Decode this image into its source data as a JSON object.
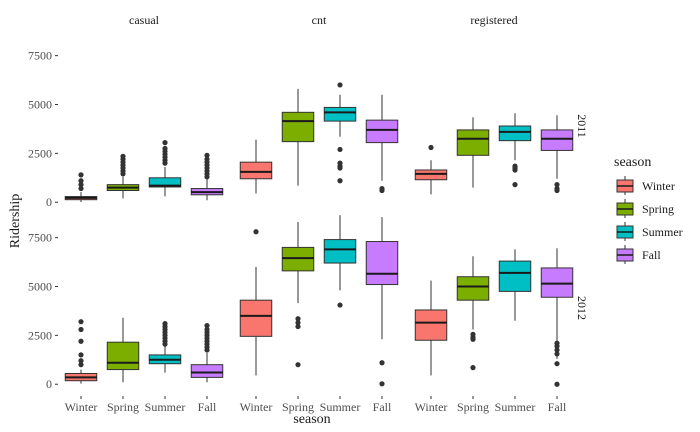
{
  "chart_data": {
    "type": "boxplot",
    "facets_col": [
      "casual",
      "cnt",
      "registered"
    ],
    "facets_row": [
      "2011",
      "2012"
    ],
    "categories": [
      "Winter",
      "Spring",
      "Summer",
      "Fall"
    ],
    "xlabel": "season",
    "ylabel": "Ridership",
    "ylim": [
      -500,
      8300
    ],
    "yticks": [
      0,
      2500,
      5000,
      7500
    ],
    "ytick_labels": [
      "0",
      "2500",
      "5000",
      "7500"
    ],
    "legend": {
      "title": "season",
      "position": "right",
      "entries": [
        "Winter",
        "Spring",
        "Summer",
        "Fall"
      ]
    },
    "colors": {
      "Winter": "#F8766D",
      "Spring": "#7CAE00",
      "Summer": "#00BFC4",
      "Fall": "#C77CFF"
    },
    "grid": false,
    "panels": [
      {
        "row": "2011",
        "col": "casual",
        "boxes": [
          {
            "category": "Winter",
            "min": 10,
            "q1": 130,
            "median": 220,
            "q3": 290,
            "max": 520,
            "outliers": [
              700,
              900,
              1100,
              1400
            ]
          },
          {
            "category": "Spring",
            "min": 200,
            "q1": 600,
            "median": 750,
            "q3": 900,
            "max": 1300,
            "outliers": [
              1450,
              1600,
              1750,
              1900,
              2050,
              2200,
              2350
            ]
          },
          {
            "category": "Summer",
            "min": 300,
            "q1": 780,
            "median": 850,
            "q3": 1250,
            "max": 1800,
            "outliers": [
              2000,
              2150,
              2300,
              2450,
              2600,
              2750,
              3050
            ]
          },
          {
            "category": "Fall",
            "min": 100,
            "q1": 380,
            "median": 520,
            "q3": 700,
            "max": 1200,
            "outliers": [
              1300,
              1450,
              1600,
              1750,
              1900,
              2050,
              2200,
              2400
            ]
          }
        ]
      },
      {
        "row": "2011",
        "col": "cnt",
        "boxes": [
          {
            "category": "Winter",
            "min": 450,
            "q1": 1200,
            "median": 1550,
            "q3": 2050,
            "max": 3200,
            "outliers": []
          },
          {
            "category": "Spring",
            "min": 850,
            "q1": 3100,
            "median": 4150,
            "q3": 4600,
            "max": 5800,
            "outliers": []
          },
          {
            "category": "Summer",
            "min": 3350,
            "q1": 4150,
            "median": 4600,
            "q3": 4850,
            "max": 5500,
            "outliers": [
              6000,
              2700,
              2000,
              1850,
              1750,
              1100
            ]
          },
          {
            "category": "Fall",
            "min": 1100,
            "q1": 3050,
            "median": 3700,
            "q3": 4200,
            "max": 5500,
            "outliers": [
              700,
              600
            ]
          }
        ]
      },
      {
        "row": "2011",
        "col": "registered",
        "boxes": [
          {
            "category": "Winter",
            "min": 400,
            "q1": 1150,
            "median": 1450,
            "q3": 1650,
            "max": 2150,
            "outliers": [
              2800
            ]
          },
          {
            "category": "Spring",
            "min": 750,
            "q1": 2400,
            "median": 3250,
            "q3": 3700,
            "max": 4350,
            "outliers": []
          },
          {
            "category": "Summer",
            "min": 2150,
            "q1": 3150,
            "median": 3600,
            "q3": 3900,
            "max": 4550,
            "outliers": [
              1850,
              1750,
              1650,
              900
            ]
          },
          {
            "category": "Fall",
            "min": 1200,
            "q1": 2650,
            "median": 3250,
            "q3": 3700,
            "max": 4450,
            "outliers": [
              900,
              700,
              600
            ]
          }
        ]
      },
      {
        "row": "2012",
        "col": "casual",
        "boxes": [
          {
            "category": "Winter",
            "min": 30,
            "q1": 180,
            "median": 350,
            "q3": 550,
            "max": 750,
            "outliers": [
              1000,
              1200,
              1500,
              2200,
              2800,
              3200
            ]
          },
          {
            "category": "Spring",
            "min": 100,
            "q1": 750,
            "median": 1100,
            "q3": 2150,
            "max": 3400,
            "outliers": []
          },
          {
            "category": "Summer",
            "min": 600,
            "q1": 1050,
            "median": 1250,
            "q3": 1500,
            "max": 1950,
            "outliers": [
              2050,
              2200,
              2350,
              2500,
              2650,
              2800,
              2950,
              3100
            ]
          },
          {
            "category": "Fall",
            "min": 100,
            "q1": 350,
            "median": 600,
            "q3": 1000,
            "max": 1600,
            "outliers": [
              1750,
              1900,
              2050,
              2200,
              2350,
              2500,
              2650,
              2800,
              3000
            ]
          }
        ]
      },
      {
        "row": "2012",
        "col": "cnt",
        "boxes": [
          {
            "category": "Winter",
            "min": 450,
            "q1": 2450,
            "median": 3500,
            "q3": 4300,
            "max": 6000,
            "outliers": [
              7800
            ]
          },
          {
            "category": "Spring",
            "min": 4150,
            "q1": 5800,
            "median": 6450,
            "q3": 7000,
            "max": 8300,
            "outliers": [
              3350,
              3150,
              2950,
              1000
            ]
          },
          {
            "category": "Summer",
            "min": 4800,
            "q1": 6200,
            "median": 6900,
            "q3": 7400,
            "max": 8650,
            "outliers": [
              4050
            ]
          },
          {
            "category": "Fall",
            "min": 2300,
            "q1": 5100,
            "median": 5650,
            "q3": 7300,
            "max": 8550,
            "outliers": [
              1100,
              20
            ]
          }
        ]
      },
      {
        "row": "2012",
        "col": "registered",
        "boxes": [
          {
            "category": "Winter",
            "min": 450,
            "q1": 2250,
            "median": 3150,
            "q3": 3800,
            "max": 5300,
            "outliers": []
          },
          {
            "category": "Spring",
            "min": 2800,
            "q1": 4300,
            "median": 5000,
            "q3": 5500,
            "max": 6550,
            "outliers": [
              2550,
              2400,
              2300,
              850
            ]
          },
          {
            "category": "Summer",
            "min": 3250,
            "q1": 4750,
            "median": 5700,
            "q3": 6300,
            "max": 6900,
            "outliers": []
          },
          {
            "category": "Fall",
            "min": 1300,
            "q1": 4450,
            "median": 5150,
            "q3": 5950,
            "max": 6950,
            "outliers": [
              2100,
              1950,
              1750,
              1550,
              1050,
              0
            ]
          }
        ]
      }
    ]
  }
}
